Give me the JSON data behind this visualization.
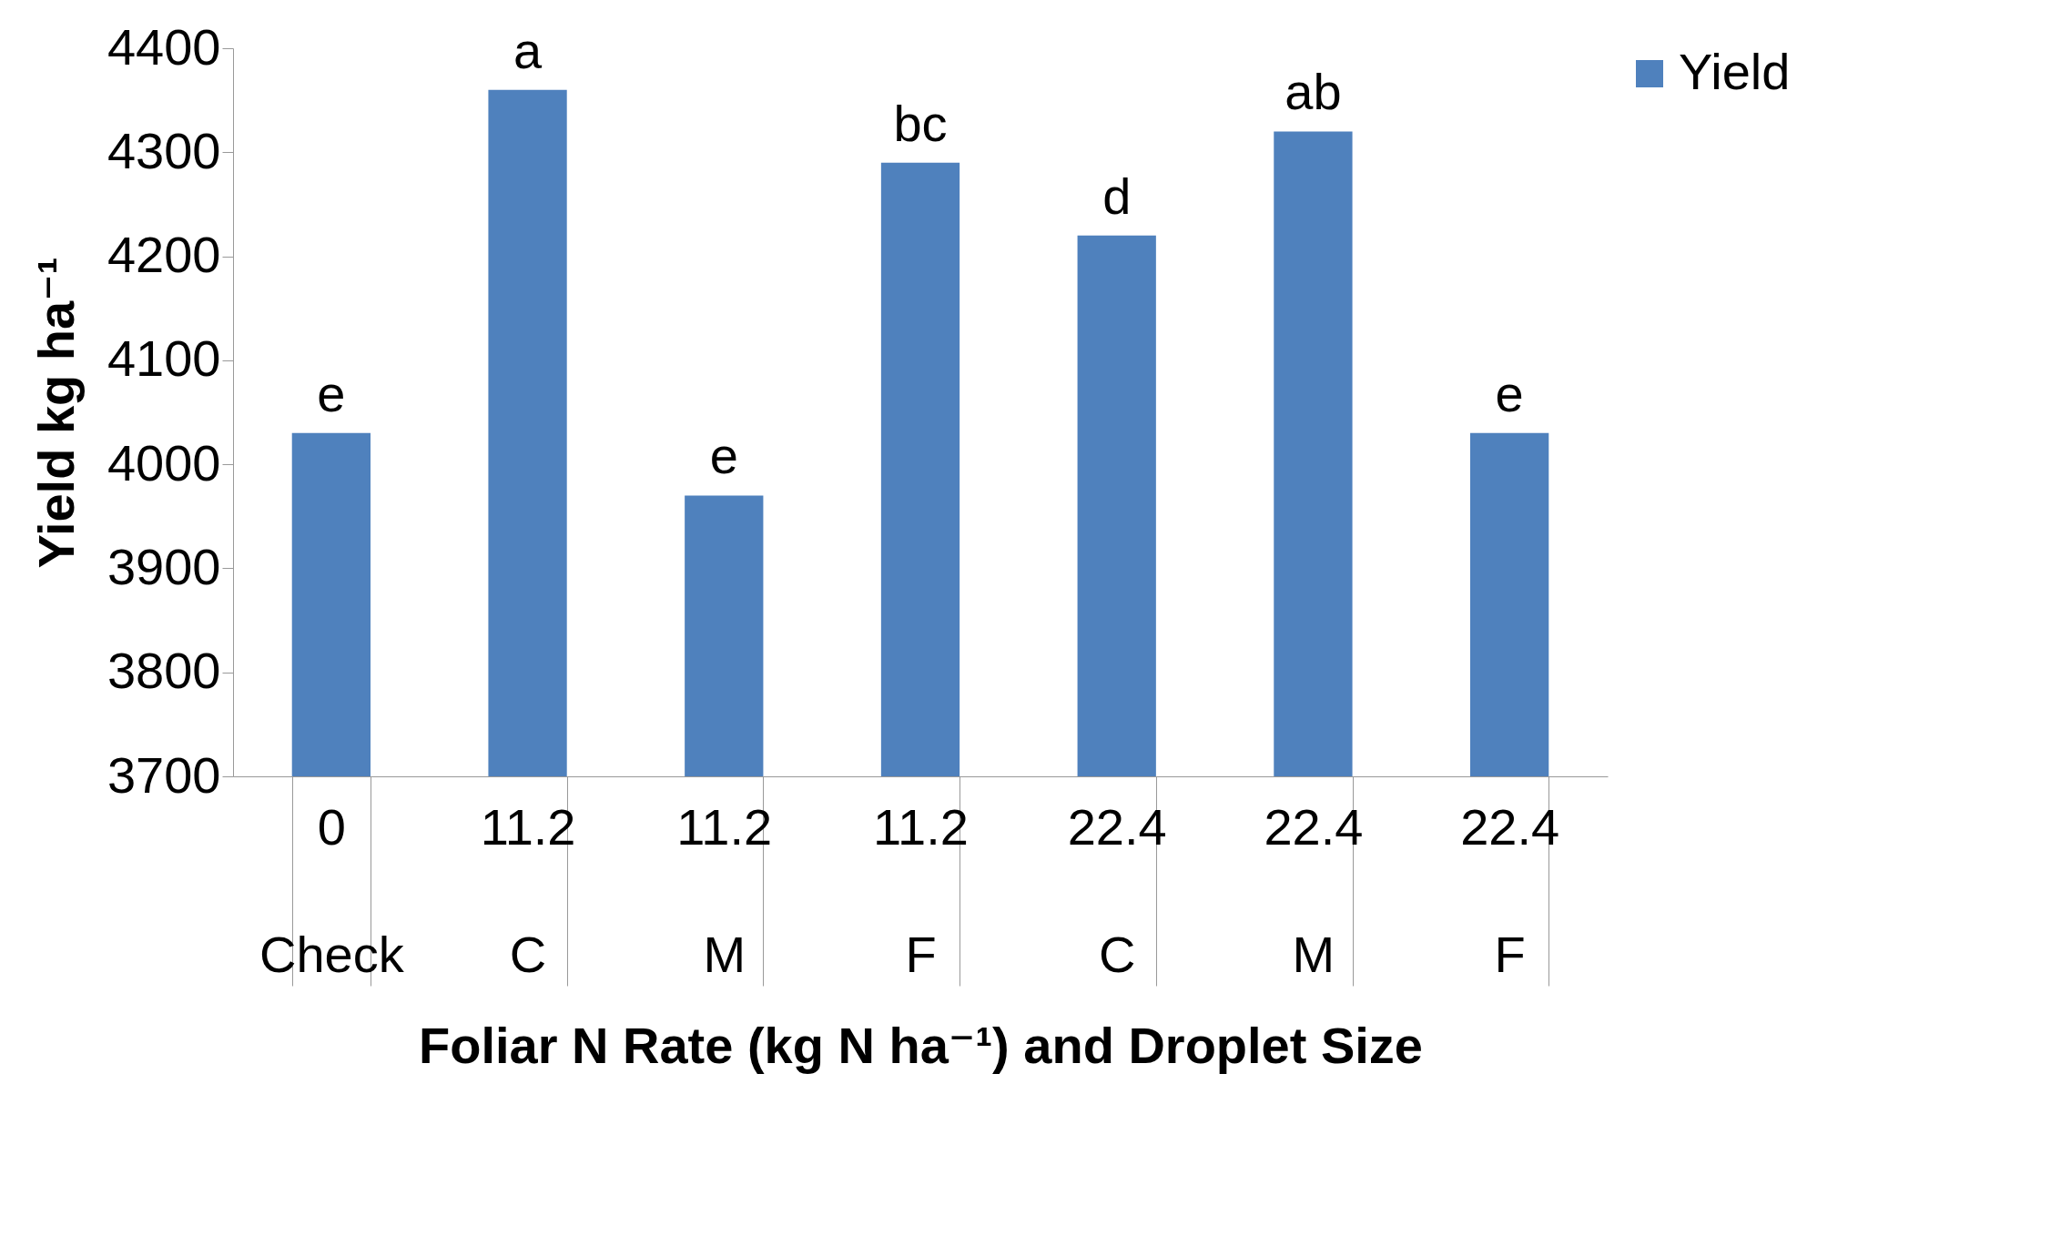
{
  "chart_data": {
    "type": "bar",
    "xlabel": "Foliar N Rate (kg N ha⁻¹) and Droplet Size",
    "ylabel": "Yield kg ha⁻¹",
    "categories": [
      "0\nCheck",
      "11.2\nC",
      "11.2\nM",
      "11.2\nF",
      "22.4\nC",
      "22.4\nM",
      "22.4\nF"
    ],
    "series": [
      {
        "name": "Yield",
        "color": "#4f81bd",
        "values": [
          4030,
          4360,
          3970,
          4290,
          4220,
          4320,
          4030
        ]
      }
    ],
    "ylim": [
      3700,
      4400
    ],
    "yticks": [
      3700,
      3800,
      3900,
      4000,
      4100,
      4200,
      4300,
      4400
    ],
    "grid": false,
    "legend": "right",
    "annotations": [
      {
        "text": "e",
        "x": "0\nCheck",
        "y": 4030
      },
      {
        "text": "a",
        "x": "11.2\nC",
        "y": 4360
      },
      {
        "text": "e",
        "x": "11.2\nM",
        "y": 3970
      },
      {
        "text": "bc",
        "x": "11.2\nF",
        "y": 4290
      },
      {
        "text": "d",
        "x": "22.4\nC",
        "y": 4220
      },
      {
        "text": "ab",
        "x": "22.4\nM",
        "y": 4320
      },
      {
        "text": "e",
        "x": "22.4\nF",
        "y": 4030
      }
    ]
  }
}
